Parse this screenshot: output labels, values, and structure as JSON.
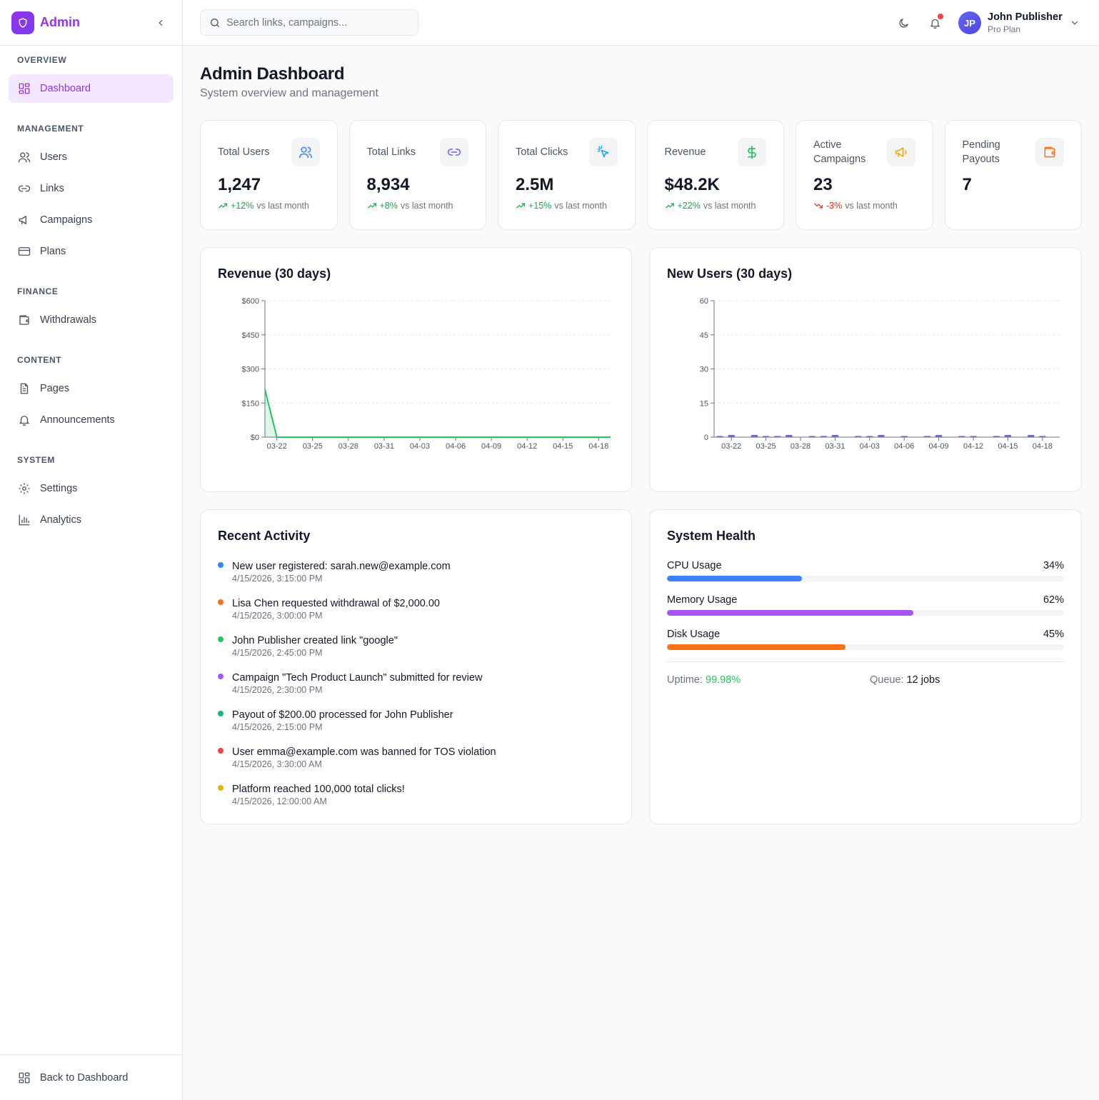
{
  "brand": {
    "name": "Admin"
  },
  "sidebar": {
    "sections": [
      {
        "heading": "OVERVIEW",
        "items": [
          {
            "label": "Dashboard",
            "icon": "dashboard-icon",
            "active": true
          }
        ]
      },
      {
        "heading": "MANAGEMENT",
        "items": [
          {
            "label": "Users",
            "icon": "users-icon"
          },
          {
            "label": "Links",
            "icon": "link-icon"
          },
          {
            "label": "Campaigns",
            "icon": "megaphone-icon"
          },
          {
            "label": "Plans",
            "icon": "credit-card-icon"
          }
        ]
      },
      {
        "heading": "FINANCE",
        "items": [
          {
            "label": "Withdrawals",
            "icon": "wallet-icon"
          }
        ]
      },
      {
        "heading": "CONTENT",
        "items": [
          {
            "label": "Pages",
            "icon": "file-text-icon"
          },
          {
            "label": "Announcements",
            "icon": "bell-icon"
          }
        ]
      },
      {
        "heading": "SYSTEM",
        "items": [
          {
            "label": "Settings",
            "icon": "gear-icon"
          },
          {
            "label": "Analytics",
            "icon": "bar-chart-icon"
          }
        ]
      }
    ],
    "footer": {
      "label": "Back to Dashboard",
      "icon": "dashboard-icon"
    }
  },
  "topbar": {
    "search_placeholder": "Search links, campaigns...",
    "user": {
      "initials": "JP",
      "name": "John Publisher",
      "plan": "Pro Plan"
    }
  },
  "page": {
    "title": "Admin Dashboard",
    "subtitle": "System overview and management"
  },
  "stats": [
    {
      "label": "Total Users",
      "value": "1,247",
      "change": "+12%",
      "trend": "up",
      "suffix": "vs last month",
      "icon": "users-icon",
      "color": "#3b82f6"
    },
    {
      "label": "Total Links",
      "value": "8,934",
      "change": "+8%",
      "trend": "up",
      "suffix": "vs last month",
      "icon": "link-icon",
      "color": "#6366f1"
    },
    {
      "label": "Total Clicks",
      "value": "2.5M",
      "change": "+15%",
      "trend": "up",
      "suffix": "vs last month",
      "icon": "cursor-click-icon",
      "color": "#0ea5e9"
    },
    {
      "label": "Revenue",
      "value": "$48.2K",
      "change": "+22%",
      "trend": "up",
      "suffix": "vs last month",
      "icon": "dollar-icon",
      "color": "#22c55e"
    },
    {
      "label": "Active Campaigns",
      "value": "23",
      "change": "-3%",
      "trend": "down",
      "suffix": "vs last month",
      "icon": "megaphone-icon",
      "color": "#f59e0b"
    },
    {
      "label": "Pending Payouts",
      "value": "7",
      "change": "",
      "trend": "",
      "suffix": "",
      "icon": "wallet-icon",
      "color": "#f97316"
    }
  ],
  "revenue_panel": {
    "title": "Revenue (30 days)"
  },
  "users_panel": {
    "title": "New Users (30 days)"
  },
  "chart_data": [
    {
      "type": "area",
      "title": "Revenue (30 days)",
      "x_ticks": [
        "03-22",
        "03-25",
        "03-28",
        "03-31",
        "04-03",
        "04-06",
        "04-09",
        "04-12",
        "04-15",
        "04-18"
      ],
      "y_ticks": [
        "$0",
        "$150",
        "$300",
        "$450",
        "$600"
      ],
      "ylim": [
        0,
        600
      ],
      "grid": true,
      "color": "#22c55e",
      "series": [
        {
          "values": [
            210,
            0,
            0,
            0,
            0,
            0,
            0,
            0,
            0,
            0,
            0,
            0,
            0,
            0,
            0,
            0,
            0,
            0,
            0,
            0,
            0,
            0,
            0,
            0,
            0,
            0,
            0,
            0,
            0,
            0
          ]
        }
      ]
    },
    {
      "type": "bar",
      "title": "New Users (30 days)",
      "x_ticks": [
        "03-22",
        "03-25",
        "03-28",
        "03-31",
        "04-03",
        "04-06",
        "04-09",
        "04-12",
        "04-15",
        "04-18"
      ],
      "y_ticks": [
        "0",
        "15",
        "30",
        "45",
        "60"
      ],
      "ylim": [
        0,
        60
      ],
      "grid": true,
      "color": "#6366f1",
      "series": [
        {
          "values": [
            0.5,
            1,
            0,
            1,
            0.5,
            0.5,
            1,
            0,
            0.5,
            0.5,
            1,
            0,
            0.5,
            0.5,
            1,
            0,
            0.5,
            0,
            0.5,
            1,
            0,
            0.5,
            0.5,
            0,
            0.5,
            1,
            0,
            1,
            0.5,
            0
          ]
        }
      ]
    }
  ],
  "activity": {
    "title": "Recent Activity",
    "items": [
      {
        "text": "New user registered: sarah.new@example.com",
        "time": "4/15/2026, 3:15:00 PM",
        "color": "#3b82f6"
      },
      {
        "text": "Lisa Chen requested withdrawal of $2,000.00",
        "time": "4/15/2026, 3:00:00 PM",
        "color": "#f97316"
      },
      {
        "text": "John Publisher created link \"google\"",
        "time": "4/15/2026, 2:45:00 PM",
        "color": "#22c55e"
      },
      {
        "text": "Campaign \"Tech Product Launch\" submitted for review",
        "time": "4/15/2026, 2:30:00 PM",
        "color": "#a855f7"
      },
      {
        "text": "Payout of $200.00 processed for John Publisher",
        "time": "4/15/2026, 2:15:00 PM",
        "color": "#10b981"
      },
      {
        "text": "User emma@example.com was banned for TOS violation",
        "time": "4/15/2026, 3:30:00 AM",
        "color": "#ef4444"
      },
      {
        "text": "Platform reached 100,000 total clicks!",
        "time": "4/15/2026, 12:00:00 AM",
        "color": "#eab308"
      }
    ]
  },
  "health": {
    "title": "System Health",
    "metrics": [
      {
        "label": "CPU Usage",
        "value": "34%",
        "percent": 34,
        "color": "#3b82f6"
      },
      {
        "label": "Memory Usage",
        "value": "62%",
        "percent": 62,
        "color": "#a855f7"
      },
      {
        "label": "Disk Usage",
        "value": "45%",
        "percent": 45,
        "color": "#f97316"
      }
    ],
    "uptime_label": "Uptime:",
    "uptime_value": "99.98%",
    "queue_label": "Queue:",
    "queue_value": "12 jobs"
  }
}
